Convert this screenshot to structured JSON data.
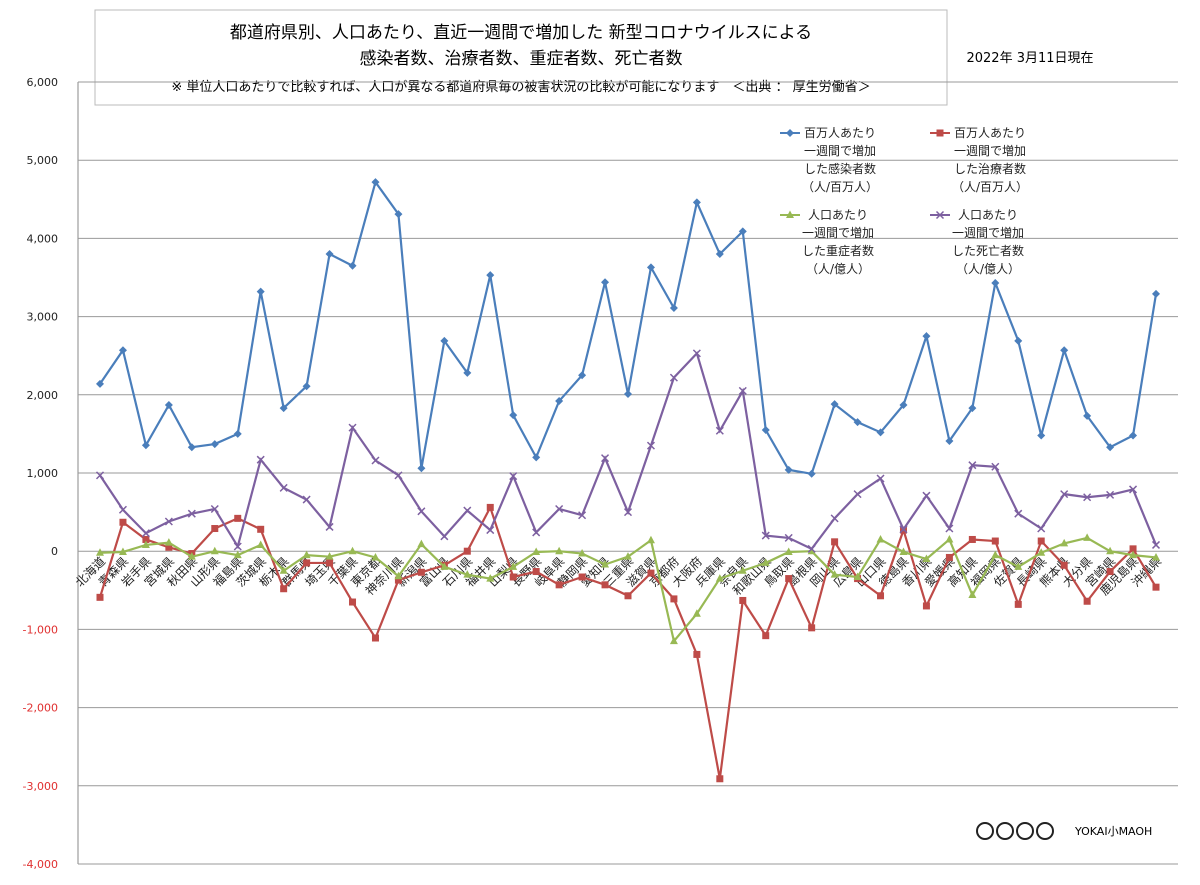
{
  "chart_data": {
    "type": "line",
    "title_lines": [
      "都道府県別、人口あたり、直近一週間で増加した 新型コロナウイルスによる",
      "感染者数、治療者数、重症者数、死亡者数",
      "※ 単位人口あたりで比較すれば、人口が異なる都道府県毎の被害状況の比較が可能になります　＜出典 ： 厚生労働省＞"
    ],
    "date": "2022年 3月11日現在",
    "credit": "YOKAI小MAOH",
    "categories": [
      "北海道",
      "青森県",
      "岩手県",
      "宮城県",
      "秋田県",
      "山形県",
      "福島県",
      "茨城県",
      "栃木県",
      "群馬県",
      "埼玉県",
      "千葉県",
      "東京都",
      "神奈川県",
      "新潟県",
      "富山県",
      "石川県",
      "福井県",
      "山梨県",
      "長野県",
      "岐阜県",
      "静岡県",
      "愛知県",
      "三重県",
      "滋賀県",
      "京都府",
      "大阪府",
      "兵庫県",
      "奈良県",
      "和歌山県",
      "鳥取県",
      "島根県",
      "岡山県",
      "広島県",
      "山口県",
      "徳島県",
      "香川県",
      "愛媛県",
      "高知県",
      "福岡県",
      "佐賀県",
      "長崎県",
      "熊本県",
      "大分県",
      "宮崎県",
      "鹿児島県",
      "沖縄県"
    ],
    "series": [
      {
        "name": "百万人あたり\n一週間で増加\nした感染者数\n（人/百万人）",
        "color": "#4a7ebb",
        "marker": "diamond",
        "values": [
          2140,
          2570,
          1355,
          1870,
          1330,
          1370,
          1500,
          3320,
          1830,
          2110,
          3800,
          3650,
          4720,
          4310,
          1060,
          2690,
          2280,
          3530,
          1740,
          1200,
          1920,
          2250,
          3440,
          2010,
          3630,
          3110,
          4460,
          3800,
          4090,
          1550,
          1040,
          990,
          1880,
          1650,
          1520,
          1870,
          2750,
          1410,
          1830,
          3430,
          2690,
          1480,
          2570,
          1730,
          1330,
          1480,
          3290
        ]
      },
      {
        "name": "百万人あたり\n一週間で増加\nした治療者数\n（人/百万人）",
        "color": "#be4b48",
        "marker": "square",
        "values": [
          -590,
          370,
          150,
          50,
          -30,
          290,
          420,
          280,
          -480,
          -150,
          -150,
          -650,
          -1110,
          -370,
          -270,
          -180,
          0,
          560,
          -330,
          -260,
          -430,
          -330,
          -430,
          -570,
          -280,
          -610,
          -1320,
          -2910,
          -630,
          -1080,
          -350,
          -980,
          120,
          -350,
          -570,
          270,
          -700,
          -80,
          150,
          130,
          -680,
          130,
          -180,
          -640,
          -260,
          30,
          -460
        ]
      },
      {
        "name": "人口あたり\n一週間で増加\nした重症者数\n（人/億人）",
        "color": "#98b954",
        "marker": "triangle",
        "values": [
          -20,
          -10,
          80,
          110,
          -70,
          0,
          -50,
          80,
          -250,
          -50,
          -70,
          0,
          -80,
          -320,
          90,
          -200,
          -300,
          -350,
          -200,
          -10,
          0,
          -30,
          -170,
          -70,
          140,
          -1150,
          -800,
          -350,
          -250,
          -150,
          -10,
          0,
          -300,
          -330,
          150,
          -10,
          -100,
          150,
          -560,
          -50,
          -200,
          -20,
          100,
          170,
          0,
          -50,
          -80
        ]
      },
      {
        "name": "人口あたり\n一週間で増加\nした死亡者数\n（人/億人）",
        "color": "#7d60a0",
        "marker": "x",
        "values": [
          970,
          530,
          230,
          380,
          480,
          540,
          60,
          1170,
          810,
          660,
          310,
          1580,
          1160,
          970,
          510,
          190,
          520,
          270,
          960,
          240,
          540,
          460,
          1190,
          500,
          1350,
          2220,
          2530,
          1540,
          2050,
          200,
          170,
          30,
          420,
          730,
          930,
          280,
          710,
          290,
          1100,
          1080,
          480,
          290,
          730,
          690,
          720,
          790,
          80
        ]
      }
    ],
    "ylim": [
      -4000,
      6000
    ],
    "yticks": [
      {
        "value": -4000,
        "label": "-4,000"
      },
      {
        "value": -3000,
        "label": "-3,000"
      },
      {
        "value": -2000,
        "label": "-2,000"
      },
      {
        "value": -1000,
        "label": "-1,000"
      },
      0,
      {
        "value": 1000,
        "label": "1,000"
      },
      {
        "value": 2000,
        "label": "2,000"
      },
      {
        "value": 3000,
        "label": "3,000"
      },
      {
        "value": 4000,
        "label": "4,000"
      },
      {
        "value": 5000,
        "label": "5,000"
      },
      {
        "value": 6000,
        "label": "6,000"
      }
    ],
    "negative_tick_color": "#e03030",
    "grid": true
  }
}
